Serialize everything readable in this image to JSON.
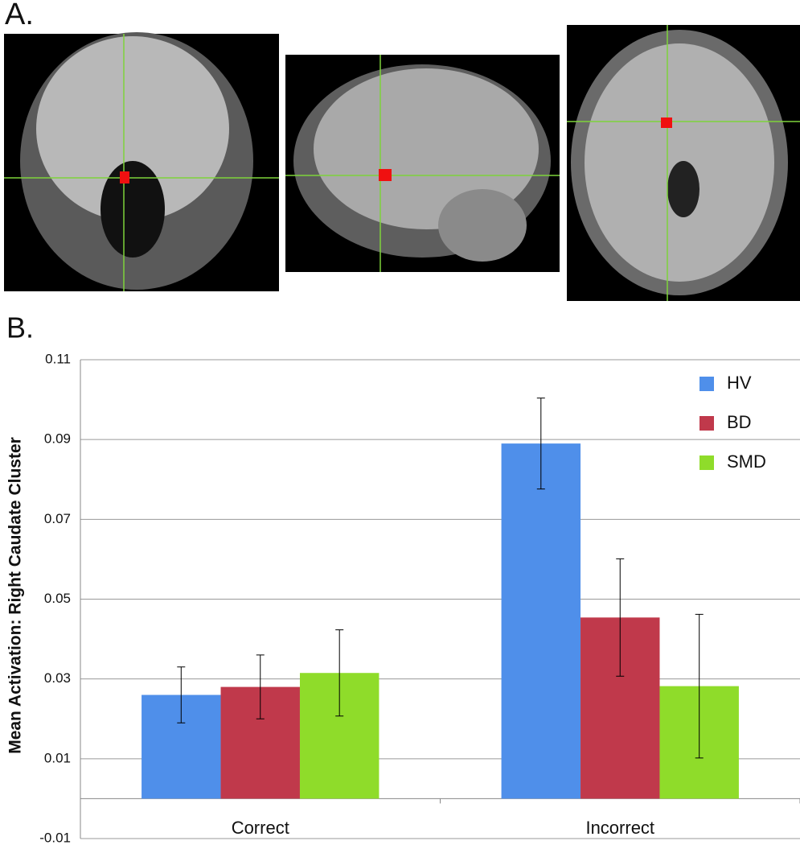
{
  "panel_labels": [
    "A.",
    "B."
  ],
  "chart_data": {
    "type": "bar",
    "y_label": "Mean Activation: Right Caudate Cluster",
    "categories": [
      "Correct",
      "Incorrect"
    ],
    "series": [
      {
        "name": "HV",
        "color": "#4f8fea",
        "values": [
          0.026,
          0.089
        ],
        "errors": [
          0.007,
          0.0114
        ]
      },
      {
        "name": "BD",
        "color": "#c0394b",
        "values": [
          0.028,
          0.0454
        ],
        "errors": [
          0.008,
          0.0147
        ]
      },
      {
        "name": "SMD",
        "color": "#8fdc2a",
        "values": [
          0.0315,
          0.0282
        ],
        "errors": [
          0.0108,
          0.018
        ]
      }
    ],
    "ylim": [
      -0.01,
      0.11
    ],
    "yticks": [
      -0.01,
      0.01,
      0.03,
      0.05,
      0.07,
      0.09,
      0.11
    ],
    "grid": true,
    "legend": "upper right"
  }
}
